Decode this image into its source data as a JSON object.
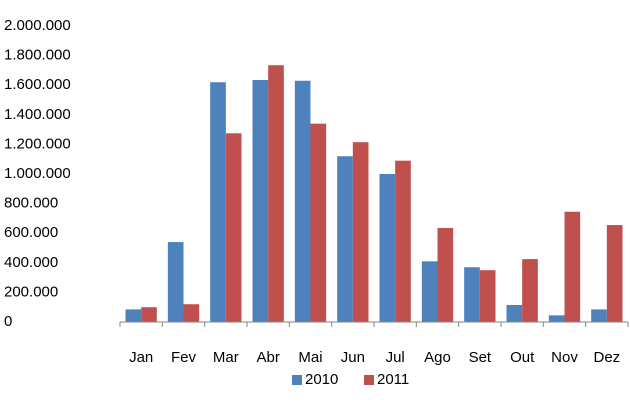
{
  "chart_data": {
    "type": "bar",
    "categories": [
      "Jan",
      "Fev",
      "Mar",
      "Abr",
      "Mai",
      "Jun",
      "Jul",
      "Ago",
      "Set",
      "Out",
      "Nov",
      "Dez"
    ],
    "series": [
      {
        "name": "2010",
        "color": "#4f81bd",
        "values": [
          85000,
          540000,
          1620000,
          1635000,
          1630000,
          1120000,
          1000000,
          410000,
          370000,
          115000,
          45000,
          85000
        ]
      },
      {
        "name": "2011",
        "color": "#c0504d",
        "values": [
          100000,
          120000,
          1275000,
          1735000,
          1340000,
          1215000,
          1090000,
          635000,
          350000,
          425000,
          745000,
          655000
        ]
      }
    ],
    "ylim": [
      0,
      2000000
    ],
    "yticks": [
      0,
      {
        "value": 200000,
        "label": "200.000"
      },
      {
        "value": 400000,
        "label": "400.000"
      },
      {
        "value": 600000,
        "label": "600.000"
      },
      {
        "value": 800000,
        "label": "800.000"
      },
      {
        "value": 1000000,
        "label": "1.000.000"
      },
      {
        "value": 1200000,
        "label": "1.200.000"
      },
      {
        "value": 1400000,
        "label": "1.400.000"
      },
      {
        "value": 1600000,
        "label": "1.600.000"
      },
      {
        "value": 1800000,
        "label": "1.800.000"
      },
      {
        "value": 2000000,
        "label": "2.000.000"
      }
    ],
    "grid": false,
    "legend": "bottom"
  }
}
